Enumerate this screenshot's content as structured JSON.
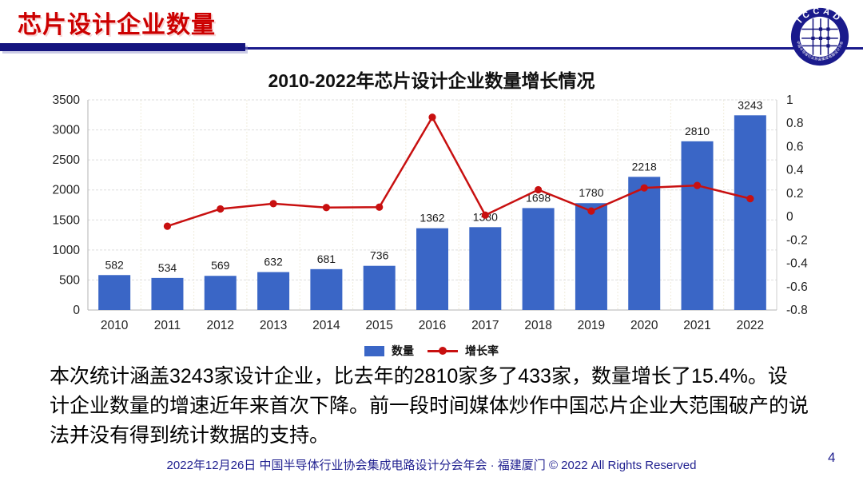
{
  "slide": {
    "title": "芯片设计企业数量",
    "page_number": "4",
    "footer": "2022年12月26日 中国半导体行业协会集成电路设计分会年会 · 福建厦门 © 2022 All Rights Reserved",
    "body_lines": [
      "本次统计涵盖3243家设计企业，比去年的2810家多了433家，数量增长了15.4%。设",
      "计企业数量的增速近年来首次下降。前一段时间媒体炒作中国芯片企业大范围破产的说",
      "法并没有得到统计数据的支持。"
    ]
  },
  "logo": {
    "text_top": "ICCAD",
    "text_bottom": "中国半导体行业协会集成电路设计分会"
  },
  "colors": {
    "accent_red": "#CC0000",
    "navy_bar": "#1A1A8C",
    "bar_blue": "#3A66C6",
    "line_red": "#C81010",
    "footer_navy": "#1F1F8F"
  },
  "chart_data": {
    "type": "bar",
    "combo": "bar+line, dual axis",
    "title": "2010-2022年芯片设计企业数量增长情况",
    "categories": [
      "2010",
      "2011",
      "2012",
      "2013",
      "2014",
      "2015",
      "2016",
      "2017",
      "2018",
      "2019",
      "2020",
      "2021",
      "2022"
    ],
    "series": [
      {
        "name": "数量",
        "type": "bar",
        "axis": "left",
        "color": "#3A66C6",
        "values": [
          582,
          534,
          569,
          632,
          681,
          736,
          1362,
          1380,
          1698,
          1780,
          2218,
          2810,
          3243
        ],
        "data_labels": true
      },
      {
        "name": "增长率",
        "type": "line",
        "axis": "right",
        "color": "#C81010",
        "values": [
          null,
          -0.082,
          0.066,
          0.111,
          0.078,
          0.081,
          0.851,
          0.013,
          0.23,
          0.048,
          0.246,
          0.267,
          0.154
        ],
        "data_labels": false
      }
    ],
    "left_axis": {
      "min": 0,
      "max": 3500,
      "ticks": [
        0,
        500,
        1000,
        1500,
        2000,
        2500,
        3000,
        3500
      ]
    },
    "right_axis": {
      "min": -0.8,
      "max": 1,
      "ticks": [
        -0.8,
        -0.6,
        -0.4,
        -0.2,
        0,
        0.2,
        0.4,
        0.6,
        0.8,
        1
      ]
    },
    "grid": true,
    "legend_position": "bottom"
  }
}
